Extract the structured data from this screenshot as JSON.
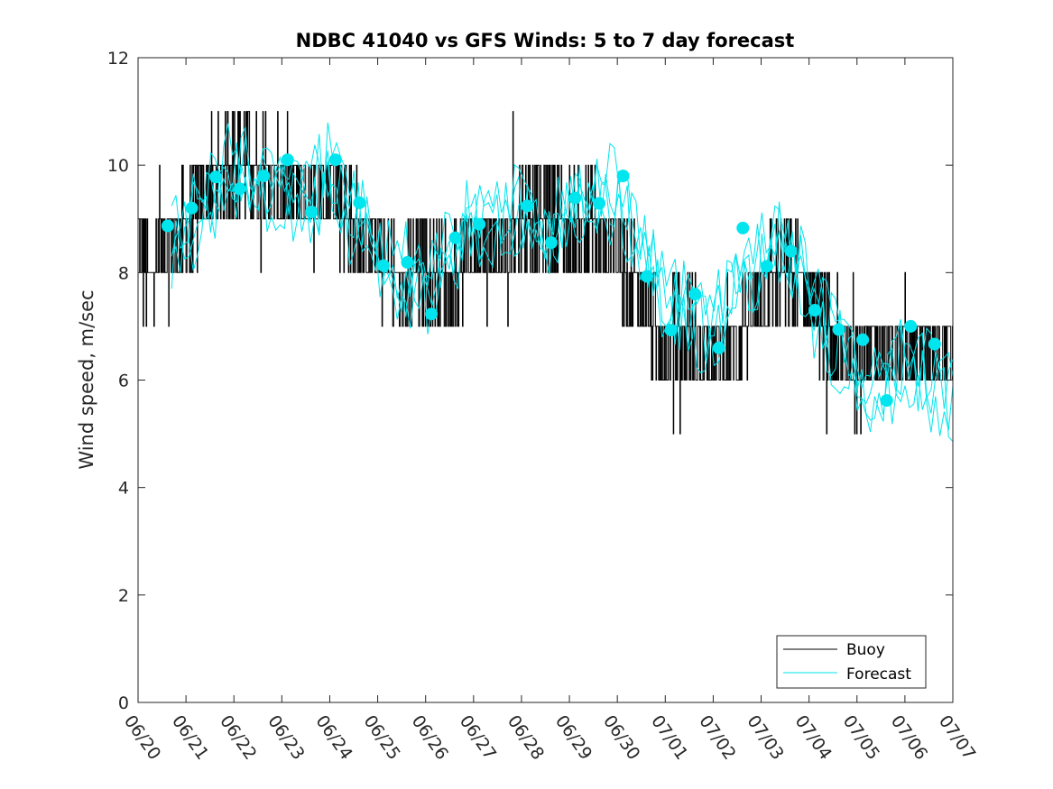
{
  "chart_data": {
    "type": "line",
    "title": "NDBC 41040 vs GFS Winds: 5 to 7 day forecast",
    "xlabel": "",
    "ylabel": "Wind speed, m/sec",
    "ylim": [
      0,
      12
    ],
    "yticks": [
      0,
      2,
      4,
      6,
      8,
      10,
      12
    ],
    "xlim_day": [
      0,
      17
    ],
    "xticks": [
      "06/20",
      "06/21",
      "06/22",
      "06/23",
      "06/24",
      "06/25",
      "06/26",
      "06/27",
      "06/28",
      "06/29",
      "06/30",
      "07/01",
      "07/02",
      "07/03",
      "07/04",
      "07/05",
      "07/06",
      "07/07"
    ],
    "grid": false,
    "legend": {
      "position": "bottom-right",
      "entries": [
        "Buoy",
        "Forecast"
      ]
    },
    "colors": {
      "buoy": "#000000",
      "forecast": "#00e5ee",
      "axis": "#262626"
    },
    "buoy_trend": [
      [
        0,
        8.4
      ],
      [
        0.25,
        7.8
      ],
      [
        0.5,
        8.6
      ],
      [
        1.0,
        8.7
      ],
      [
        1.5,
        9.6
      ],
      [
        2.0,
        10.2
      ],
      [
        2.5,
        9.9
      ],
      [
        3.0,
        9.6
      ],
      [
        3.5,
        9.5
      ],
      [
        4.0,
        9.6
      ],
      [
        4.5,
        8.9
      ],
      [
        5.0,
        8.4
      ],
      [
        5.5,
        7.6
      ],
      [
        6.0,
        8.2
      ],
      [
        6.5,
        7.9
      ],
      [
        7.0,
        8.3
      ],
      [
        7.5,
        8.4
      ],
      [
        8.0,
        9.0
      ],
      [
        8.5,
        9.2
      ],
      [
        9.0,
        8.7
      ],
      [
        9.5,
        8.8
      ],
      [
        10.0,
        8.5
      ],
      [
        10.5,
        7.5
      ],
      [
        11.0,
        6.6
      ],
      [
        11.5,
        6.9
      ],
      [
        12.0,
        6.4
      ],
      [
        12.5,
        6.7
      ],
      [
        13.0,
        7.7
      ],
      [
        13.5,
        8.0
      ],
      [
        14.0,
        7.6
      ],
      [
        14.5,
        6.7
      ],
      [
        15.0,
        6.3
      ],
      [
        15.5,
        6.6
      ],
      [
        16.0,
        6.6
      ],
      [
        16.5,
        6.6
      ],
      [
        17.0,
        6.6
      ]
    ],
    "forecast_trend": [
      [
        0.7,
        8.5
      ],
      [
        1.0,
        8.8
      ],
      [
        1.5,
        9.3
      ],
      [
        2.0,
        9.9
      ],
      [
        2.5,
        9.7
      ],
      [
        3.0,
        9.6
      ],
      [
        3.5,
        9.4
      ],
      [
        4.0,
        9.8
      ],
      [
        4.5,
        9.0
      ],
      [
        5.0,
        8.4
      ],
      [
        5.5,
        8.0
      ],
      [
        6.0,
        7.7
      ],
      [
        6.5,
        8.3
      ],
      [
        7.0,
        8.9
      ],
      [
        7.5,
        8.9
      ],
      [
        8.0,
        9.1
      ],
      [
        8.5,
        8.8
      ],
      [
        9.0,
        9.2
      ],
      [
        9.5,
        9.3
      ],
      [
        10.0,
        9.6
      ],
      [
        10.5,
        8.6
      ],
      [
        11.0,
        7.5
      ],
      [
        11.5,
        7.2
      ],
      [
        12.0,
        7.0
      ],
      [
        12.5,
        7.8
      ],
      [
        13.0,
        8.3
      ],
      [
        13.5,
        8.6
      ],
      [
        14.0,
        7.6
      ],
      [
        14.5,
        6.8
      ],
      [
        15.0,
        6.0
      ],
      [
        15.5,
        5.6
      ],
      [
        16.0,
        6.6
      ],
      [
        16.5,
        6.0
      ],
      [
        17.0,
        5.5
      ]
    ],
    "forecast_points": [
      [
        0.62,
        8.87
      ],
      [
        1.12,
        9.2
      ],
      [
        1.62,
        9.78
      ],
      [
        2.12,
        9.56
      ],
      [
        2.62,
        9.8
      ],
      [
        3.12,
        10.1
      ],
      [
        3.62,
        9.13
      ],
      [
        4.12,
        10.1
      ],
      [
        4.62,
        9.3
      ],
      [
        5.12,
        8.13
      ],
      [
        5.62,
        8.19
      ],
      [
        6.12,
        7.23
      ],
      [
        6.62,
        8.65
      ],
      [
        7.12,
        8.9
      ],
      [
        8.12,
        9.24
      ],
      [
        8.62,
        8.56
      ],
      [
        9.12,
        9.39
      ],
      [
        9.62,
        9.29
      ],
      [
        10.12,
        9.8
      ],
      [
        10.62,
        7.93
      ],
      [
        11.12,
        6.93
      ],
      [
        11.62,
        7.6
      ],
      [
        12.12,
        6.6
      ],
      [
        12.62,
        8.83
      ],
      [
        13.12,
        8.12
      ],
      [
        13.62,
        8.4
      ],
      [
        14.12,
        7.3
      ],
      [
        14.62,
        6.94
      ],
      [
        15.12,
        6.75
      ],
      [
        15.62,
        5.62
      ],
      [
        16.12,
        7.0
      ],
      [
        16.62,
        6.67
      ]
    ]
  }
}
